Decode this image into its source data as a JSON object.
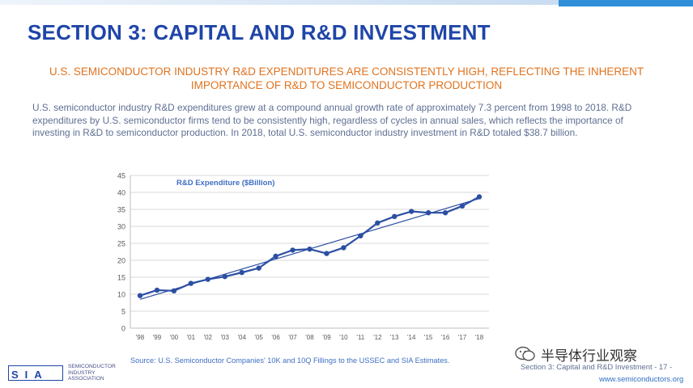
{
  "page": {
    "title": "SECTION 3: CAPITAL AND R&D INVESTMENT",
    "subtitle": "U.S. SEMICONDUCTOR INDUSTRY R&D EXPENDITURES ARE CONSISTENTLY HIGH, REFLECTING THE INHERENT IMPORTANCE OF R&D TO SEMICONDUCTOR PRODUCTION",
    "body": "U.S. semiconductor industry R&D expenditures grew at a compound annual growth rate of approximately 7.3 percent from 1998 to 2018. R&D expenditures by U.S. semiconductor firms tend to be consistently high, regardless of cycles in annual sales, which reflects the importance of investing in R&D to semiconductor production.  In 2018, total U.S. semiconductor industry investment in R&D totaled $38.7 billion.",
    "source": "Source: U.S. Semiconductor Companies' 10K and 10Q Fillings to the USSEC and SIA Estimates.",
    "footer_right": "Section 3: Capital and R&D Investment - 17 -",
    "footer_url": "www.semiconductors.org",
    "watermark": "半导体行业观察",
    "logo": {
      "letters": "SIA",
      "lines": [
        "SEMICONDUCTOR",
        "INDUSTRY",
        "ASSOCIATION"
      ]
    }
  },
  "colors": {
    "title": "#1f45a8",
    "subtitle": "#e0731f",
    "series": "#2c4fa3",
    "trend": "#2c4fa3",
    "accent_bar": "#2f8fd8"
  },
  "chart_data": {
    "type": "line",
    "title": "R&D Expenditure ($Billion)",
    "xlabel": "",
    "ylabel": "",
    "categories": [
      "'98",
      "'99",
      "'00",
      "'01",
      "'02",
      "'03",
      "'04",
      "'05",
      "'06",
      "'07",
      "'08",
      "'09",
      "'10",
      "'11",
      "'12",
      "'13",
      "'14",
      "'15",
      "'16",
      "'17",
      "'18"
    ],
    "series": [
      {
        "name": "R&D Expenditure ($Billion)",
        "values": [
          9.6,
          11.2,
          11.0,
          13.2,
          14.4,
          15.2,
          16.4,
          17.7,
          21.2,
          23.0,
          23.3,
          22.0,
          23.7,
          27.2,
          31.0,
          32.9,
          34.4,
          34.0,
          34.0,
          36.0,
          38.7
        ]
      }
    ],
    "trendline": true,
    "ylim": [
      0,
      45
    ],
    "yticks": [
      0,
      5,
      10,
      15,
      20,
      25,
      30,
      35,
      40,
      45
    ],
    "grid": true,
    "legend": "none"
  }
}
